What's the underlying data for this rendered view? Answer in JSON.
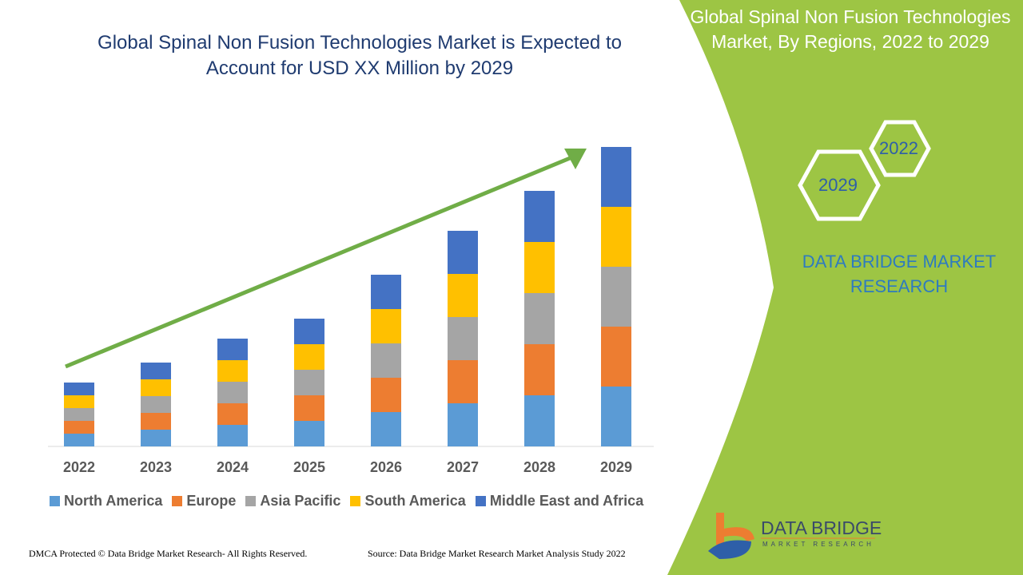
{
  "header": {
    "title_line1": "Global Spinal Non Fusion Technologies Market is Expected to",
    "title_line2": "Account for USD XX Million by 2029"
  },
  "side_panel": {
    "title_line1": "Global Spinal Non Fusion Technologies",
    "title_line2": "Market, By Regions, 2022 to 2029",
    "hex_years": [
      "2022",
      "2029"
    ],
    "brand_line1": "DATA BRIDGE MARKET",
    "brand_line2": "RESEARCH",
    "logo_name": "DATA BRIDGE",
    "logo_sub": "MARKET RESEARCH",
    "panel_color": "#9dc544"
  },
  "footer": {
    "left": "DMCA Protected © Data Bridge Market Research- All Rights Reserved.",
    "right": "Source: Data Bridge Market Research Market Analysis Study 2022"
  },
  "chart_data": {
    "type": "bar",
    "stacked": true,
    "title": "Global Spinal Non Fusion Technologies Market is Expected to Account for USD XX Million by 2029",
    "xlabel": "",
    "ylabel": "",
    "y_axis_shown": false,
    "grid": false,
    "legend_position": "bottom",
    "trend_arrow": true,
    "trend_arrow_color": "#70ad47",
    "categories": [
      "2022",
      "2023",
      "2024",
      "2025",
      "2026",
      "2027",
      "2028",
      "2029"
    ],
    "series": [
      {
        "name": "North America",
        "color": "#5b9bd5",
        "values": [
          16,
          21,
          27,
          32,
          43,
          54,
          64,
          75
        ]
      },
      {
        "name": "Europe",
        "color": "#ed7d31",
        "values": [
          16,
          21,
          27,
          32,
          43,
          54,
          64,
          75
        ]
      },
      {
        "name": "Asia Pacific",
        "color": "#a5a5a5",
        "values": [
          16,
          21,
          27,
          32,
          43,
          54,
          64,
          75
        ]
      },
      {
        "name": "South America",
        "color": "#ffc000",
        "values": [
          16,
          21,
          27,
          32,
          43,
          54,
          64,
          75
        ]
      },
      {
        "name": "Middle East and Africa",
        "color": "#4472c4",
        "values": [
          16,
          21,
          27,
          32,
          43,
          54,
          64,
          75
        ]
      }
    ],
    "ylim": [
      0,
      380
    ]
  }
}
